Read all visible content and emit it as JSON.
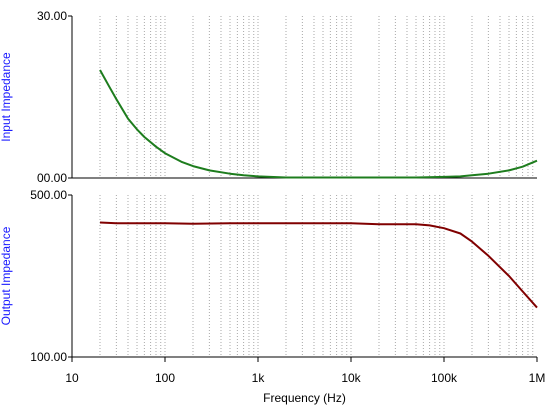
{
  "chart_data": [
    {
      "type": "line",
      "ylabel": "Input Impedance",
      "xscale": "log",
      "xlim": [
        10,
        1000000
      ],
      "ylim": [
        0,
        30
      ],
      "ytick_labels": [
        "30.00",
        "00.00"
      ],
      "ytick_values": [
        30,
        0
      ],
      "grid": "vertical dotted",
      "series": [
        {
          "color": "#1e7d1e",
          "x": [
            20,
            25,
            30,
            40,
            50,
            60,
            80,
            100,
            150,
            200,
            300,
            500,
            700,
            1000,
            2000,
            5000,
            10000,
            20000,
            50000,
            100000,
            150000,
            200000,
            300000,
            500000,
            700000,
            1000000
          ],
          "y": [
            20.0,
            17.0,
            14.6,
            11.0,
            9.0,
            7.6,
            5.8,
            4.6,
            3.0,
            2.2,
            1.4,
            0.8,
            0.5,
            0.3,
            0.1,
            0.1,
            0.1,
            0.1,
            0.1,
            0.2,
            0.3,
            0.5,
            0.8,
            1.4,
            2.1,
            3.2
          ]
        }
      ]
    },
    {
      "type": "line",
      "ylabel": "Output Impedance",
      "xlabel": "Frequency (Hz)",
      "xscale": "log",
      "xlim": [
        10,
        1000000
      ],
      "ylim": [
        100,
        500
      ],
      "ytick_labels": [
        "500.00",
        "100.00"
      ],
      "ytick_values": [
        500,
        100
      ],
      "xtick_labels": [
        "10",
        "100",
        "1k",
        "10k",
        "100k",
        "1M"
      ],
      "xtick_values": [
        10,
        100,
        1000,
        10000,
        100000,
        1000000
      ],
      "grid": "vertical dotted",
      "series": [
        {
          "color": "#800000",
          "x": [
            20,
            30,
            50,
            100,
            200,
            500,
            1000,
            5000,
            10000,
            20000,
            50000,
            70000,
            100000,
            150000,
            200000,
            300000,
            500000,
            700000,
            1000000
          ],
          "y": [
            432,
            430,
            430,
            430,
            429,
            430,
            430,
            430,
            430,
            428,
            428,
            425,
            418,
            405,
            385,
            350,
            300,
            262,
            222
          ]
        }
      ]
    }
  ]
}
